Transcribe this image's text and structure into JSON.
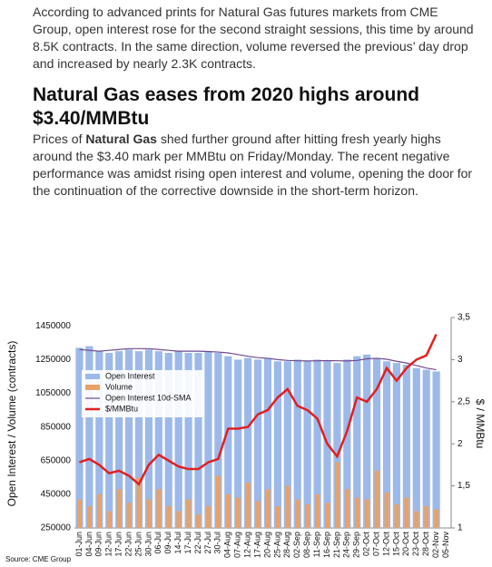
{
  "article": {
    "paragraph_1": "According to advanced prints for Natural Gas futures markets from CME Group, open interest rose for the second straight sessions, this time by around 8.5K contracts. In the same direction, volume reversed the previous’ day drop and increased by nearly 2.3K contracts.",
    "heading": "Natural Gas eases from 2020 highs around $3.40/MMBtu",
    "paragraph_2": [
      "Prices of ",
      "Natural Gas",
      " shed further ground after hitting fresh yearly highs around the $3.40 mark per MMBtu on Friday/Monday. The recent negative performance was amidst rising open interest and volume, opening the door for the continuation of the corrective downside in the short-term horizon."
    ]
  },
  "chart_data": {
    "type": "bar-line",
    "source": "Source: CME Group",
    "y_label": "Open Interest / Volume (contracts)",
    "y2_label": "$ / MMBtu",
    "legend": "upper left",
    "categories": [
      "01-Jun",
      "04-Jun",
      "09-Jun",
      "12-Jun",
      "17-Jun",
      "22-Jun",
      "25-Jun",
      "30-Jun",
      "06-Jul",
      "09-Jul",
      "14-Jul",
      "17-Jul",
      "22-Jul",
      "27-Jul",
      "30-Jul",
      "04-Aug",
      "07-Aug",
      "12-Aug",
      "17-Aug",
      "20-Aug",
      "25-Aug",
      "28-Aug",
      "02-Sep",
      "08-Sep",
      "11-Sep",
      "16-Sep",
      "21-Sep",
      "24-Sep",
      "29-Sep",
      "02-Oct",
      "07-Oct",
      "12-Oct",
      "15-Oct",
      "20-Oct",
      "23-Oct",
      "28-Oct",
      "02-Nov",
      "05-Nov"
    ],
    "ylim": [
      250000,
      1500000
    ],
    "yticks": [
      250000,
      450000,
      650000,
      850000,
      1050000,
      1250000,
      1450000
    ],
    "y2lim": [
      1,
      3.5
    ],
    "y2ticks": [
      1,
      {
        "value": 1.5,
        "label": "1,5"
      },
      2,
      {
        "value": 2.5,
        "label": "2,5"
      },
      3,
      {
        "value": 3.5,
        "label": "3,5"
      }
    ],
    "series": [
      {
        "name": "Open Interest",
        "kind": "bar",
        "color": "#9db9ea",
        "values": [
          1320000,
          1330000,
          1300000,
          1290000,
          1300000,
          1310000,
          1300000,
          1310000,
          1300000,
          1290000,
          1300000,
          1290000,
          1290000,
          1300000,
          1290000,
          1270000,
          1250000,
          1260000,
          1250000,
          1260000,
          1240000,
          1240000,
          1250000,
          1240000,
          1250000,
          1240000,
          1230000,
          1250000,
          1270000,
          1280000,
          1260000,
          1240000,
          1230000,
          1220000,
          1200000,
          1190000,
          1180000,
          null
        ]
      },
      {
        "name": "Volume",
        "kind": "bar",
        "color": "#e9a266",
        "values": [
          420000,
          380000,
          450000,
          350000,
          480000,
          400000,
          550000,
          420000,
          480000,
          380000,
          350000,
          420000,
          330000,
          380000,
          560000,
          450000,
          430000,
          520000,
          410000,
          480000,
          380000,
          500000,
          420000,
          390000,
          450000,
          400000,
          640000,
          480000,
          430000,
          420000,
          590000,
          460000,
          390000,
          430000,
          350000,
          380000,
          360000,
          null
        ]
      },
      {
        "name": "Open Interest 10d-SMA",
        "kind": "line",
        "color": "#6f4a8e",
        "values": [
          1310000,
          1305000,
          1300000,
          1305000,
          1310000,
          1315000,
          1315000,
          1315000,
          1310000,
          1305000,
          1300000,
          1300000,
          1300000,
          1298000,
          1295000,
          1290000,
          1280000,
          1270000,
          1262000,
          1258000,
          1250000,
          1245000,
          1243000,
          1242000,
          1243000,
          1244000,
          1243000,
          1242000,
          1245000,
          1255000,
          1258000,
          1252000,
          1240000,
          1230000,
          1215000,
          1200000,
          1190000,
          null
        ]
      },
      {
        "name": "$/MMBtu",
        "kind": "line",
        "axis": "y2",
        "color": "#e02020",
        "values": [
          1.78,
          1.82,
          1.75,
          1.65,
          1.68,
          1.62,
          1.52,
          1.75,
          1.87,
          1.8,
          1.73,
          1.7,
          1.7,
          1.78,
          1.82,
          2.18,
          2.18,
          2.2,
          2.35,
          2.4,
          2.55,
          2.65,
          2.45,
          2.4,
          2.3,
          2.0,
          1.85,
          2.15,
          2.55,
          2.5,
          2.65,
          2.9,
          2.75,
          2.9,
          3.0,
          3.05,
          3.3,
          null
        ]
      }
    ]
  }
}
